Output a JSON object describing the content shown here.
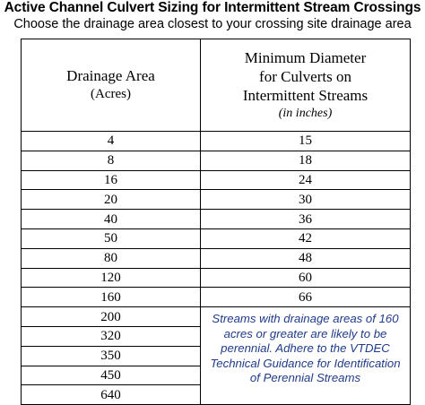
{
  "header": {
    "title": "Active Channel Culvert Sizing for Intermittent Stream Crossings",
    "subtitle": "Choose the drainage area closest to your crossing site drainage area"
  },
  "table": {
    "col1_header_line1": "Drainage Area",
    "col1_header_line2": "(Acres)",
    "col2_header_line1": "Minimum Diameter",
    "col2_header_line2": "for Culverts on",
    "col2_header_line3": "Intermittent Streams",
    "col2_header_units": "(in inches)",
    "rows": [
      {
        "area": "4",
        "diameter": "15"
      },
      {
        "area": "8",
        "diameter": "18"
      },
      {
        "area": "16",
        "diameter": "24"
      },
      {
        "area": "20",
        "diameter": "30"
      },
      {
        "area": "40",
        "diameter": "36"
      },
      {
        "area": "50",
        "diameter": "42"
      },
      {
        "area": "80",
        "diameter": "48"
      },
      {
        "area": "120",
        "diameter": "60"
      },
      {
        "area": "160",
        "diameter": "66"
      },
      {
        "area": "200"
      },
      {
        "area": "320"
      },
      {
        "area": "350"
      },
      {
        "area": "450"
      },
      {
        "area": "640"
      }
    ],
    "note": "Streams with drainage areas of 160 acres or greater are likely to be perennial.  Adhere to the VTDEC Technical Guidance for Identification of Perennial Streams",
    "note_color": "#1f3b8a"
  }
}
